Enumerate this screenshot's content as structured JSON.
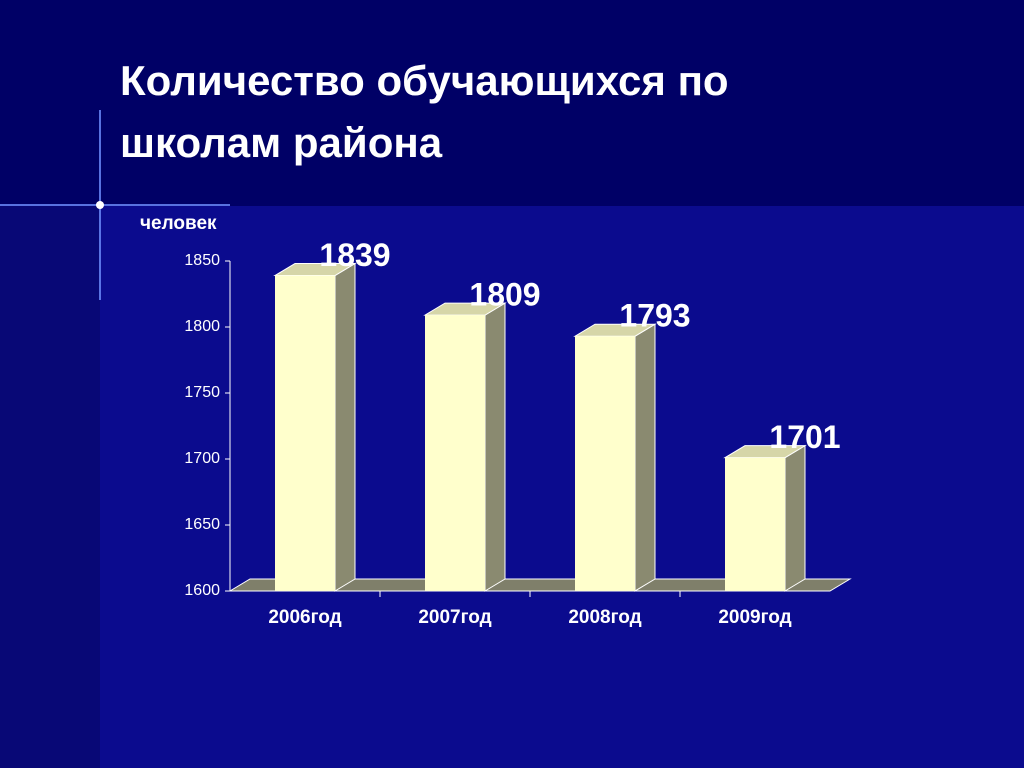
{
  "title": "Количество обучающихся по школам района",
  "chart_data": {
    "type": "bar3d",
    "y_label": "человек",
    "categories": [
      "2006год",
      "2007год",
      "2008год",
      "2009год"
    ],
    "values": [
      1839,
      1809,
      1793,
      1701
    ],
    "color": "#ffffcc",
    "ylim": [
      1600,
      1850
    ],
    "yticks": [
      1600,
      1650,
      1700,
      1750,
      1800,
      1850
    ],
    "show_value_labels": true
  }
}
